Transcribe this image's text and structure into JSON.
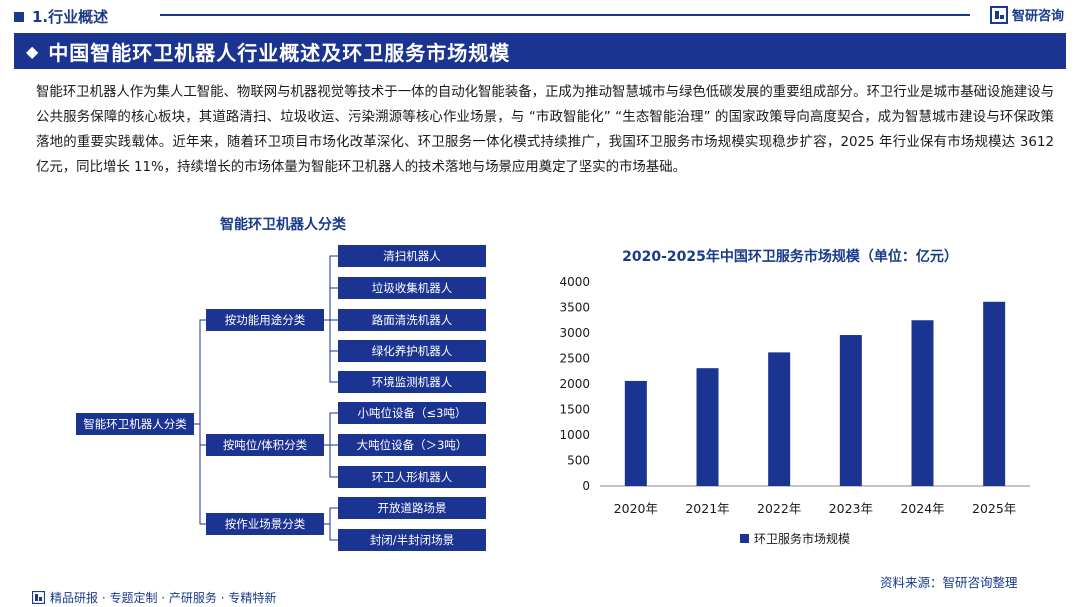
{
  "header": {
    "section_title": "1.行业概述",
    "brand_name": "智研咨询"
  },
  "banner": {
    "title": "中国智能环卫机器人行业概述及环卫服务市场规模"
  },
  "intro": {
    "text": "智能环卫机器人作为集人工智能、物联网与机器视觉等技术于一体的自动化智能装备，正成为推动智慧城市与绿色低碳发展的重要组成部分。环卫行业是城市基础设施建设与公共服务保障的核心板块，其道路清扫、垃圾收运、污染溯源等核心作业场景，与 “市政智能化” “生态智能治理” 的国家政策导向高度契合，成为智慧城市建设与环保政策落地的重要实践载体。近年来，随着环卫项目市场化改革深化、环卫服务一体化模式持续推广，我国环卫服务市场规模实现稳步扩容，2025 年行业保有市场规模达 3612 亿元，同比增长 11%，持续增长的市场体量为智能环卫机器人的技术落地与场景应用奠定了坚实的市场基础。"
  },
  "tree": {
    "title": "智能环卫机器人分类",
    "root": "智能环卫机器人分类",
    "groups": [
      {
        "label": "按功能用途分类",
        "leaves": [
          "清扫机器人",
          "垃圾收集机器人",
          "路面清洗机器人",
          "绿化养护机器人",
          "环境监测机器人"
        ]
      },
      {
        "label": "按吨位/体积分类",
        "leaves": [
          "小吨位设备（≤3吨）",
          "大吨位设备（＞3吨）",
          "环卫人形机器人"
        ]
      },
      {
        "label": "按作业场景分类",
        "leaves": [
          "开放道路场景",
          "封闭/半封闭场景"
        ]
      }
    ]
  },
  "chart_data": {
    "type": "bar",
    "title": "2020-2025年中国环卫服务市场规模（单位：亿元）",
    "categories": [
      "2020年",
      "2021年",
      "2022年",
      "2023年",
      "2024年",
      "2025年"
    ],
    "series": [
      {
        "name": "环卫服务市场规模",
        "values": [
          2060,
          2310,
          2620,
          2960,
          3250,
          3612
        ]
      }
    ],
    "ylim": [
      0,
      4000
    ],
    "yticks": [
      0,
      500,
      1000,
      1500,
      2000,
      2500,
      3000,
      3500,
      4000
    ],
    "ytick_labels": [
      "0",
      "500",
      "1000",
      "1500",
      "2000",
      "2500",
      "3000",
      "3500",
      "4000"
    ],
    "legend": "bottom",
    "bar_color": "#1b3391"
  },
  "source": "资料来源：智研咨询整理",
  "footer": {
    "text": "精品研报 · 专题定制 · 产研服务 · 专精特新"
  },
  "colors": {
    "brand": "#1b3391",
    "accent": "#1a3a8a"
  }
}
